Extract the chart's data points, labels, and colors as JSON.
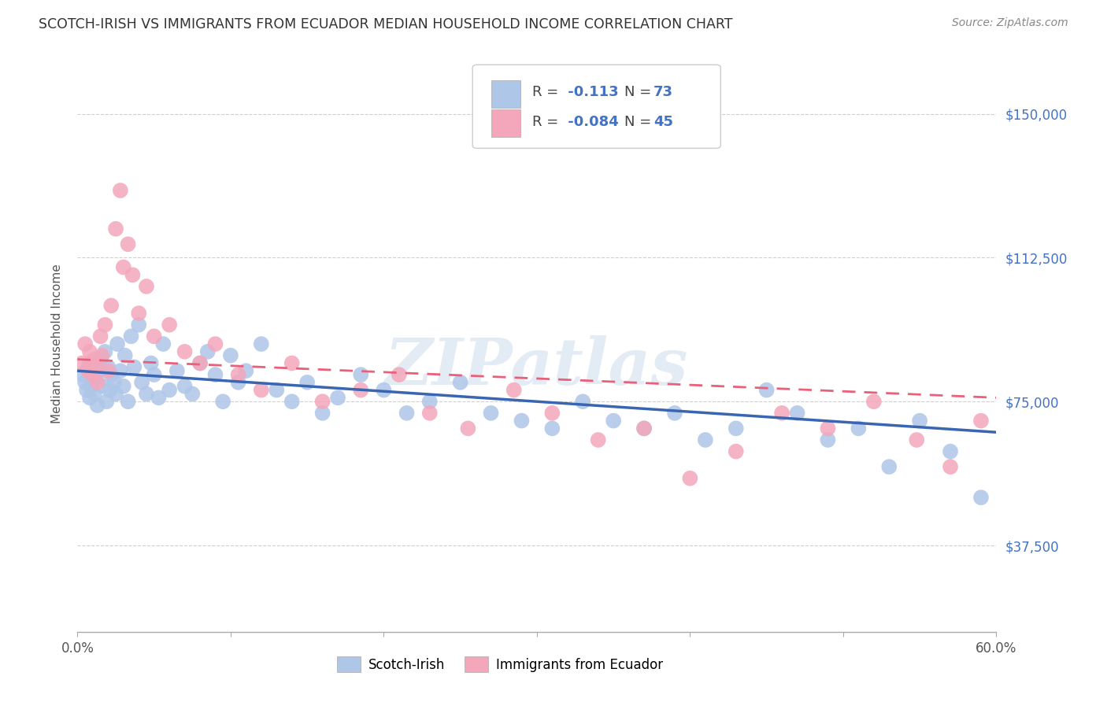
{
  "title": "SCOTCH-IRISH VS IMMIGRANTS FROM ECUADOR MEDIAN HOUSEHOLD INCOME CORRELATION CHART",
  "source": "Source: ZipAtlas.com",
  "ylabel": "Median Household Income",
  "ytick_positions": [
    37500,
    75000,
    112500,
    150000
  ],
  "ytick_labels": [
    "$37,500",
    "$75,000",
    "$112,500",
    "$150,000"
  ],
  "xlim": [
    0.0,
    0.6
  ],
  "ylim": [
    15000,
    165000
  ],
  "watermark": "ZIPatlas",
  "legend_r1": "-0.113",
  "legend_n1": "73",
  "legend_r2": "-0.084",
  "legend_n2": "45",
  "color_blue": "#aec6e8",
  "color_pink": "#f4a7bb",
  "line_blue": "#3a65b0",
  "line_pink": "#e8607a",
  "blue_line_y0": 83000,
  "blue_line_y1": 67000,
  "pink_line_y0": 86000,
  "pink_line_y1": 76000,
  "blue_x": [
    0.003,
    0.005,
    0.006,
    0.007,
    0.008,
    0.009,
    0.01,
    0.011,
    0.012,
    0.013,
    0.014,
    0.015,
    0.016,
    0.018,
    0.019,
    0.02,
    0.021,
    0.022,
    0.024,
    0.025,
    0.026,
    0.028,
    0.03,
    0.031,
    0.033,
    0.035,
    0.037,
    0.04,
    0.042,
    0.045,
    0.048,
    0.05,
    0.053,
    0.056,
    0.06,
    0.065,
    0.07,
    0.075,
    0.08,
    0.085,
    0.09,
    0.095,
    0.1,
    0.105,
    0.11,
    0.12,
    0.13,
    0.14,
    0.15,
    0.16,
    0.17,
    0.185,
    0.2,
    0.215,
    0.23,
    0.25,
    0.27,
    0.29,
    0.31,
    0.33,
    0.35,
    0.37,
    0.39,
    0.41,
    0.43,
    0.45,
    0.47,
    0.49,
    0.51,
    0.53,
    0.55,
    0.57,
    0.59
  ],
  "blue_y": [
    82000,
    80000,
    78000,
    84000,
    76000,
    79000,
    85000,
    77000,
    81000,
    74000,
    83000,
    86000,
    79000,
    88000,
    75000,
    84000,
    78000,
    82000,
    80000,
    77000,
    90000,
    83000,
    79000,
    87000,
    75000,
    92000,
    84000,
    95000,
    80000,
    77000,
    85000,
    82000,
    76000,
    90000,
    78000,
    83000,
    79000,
    77000,
    85000,
    88000,
    82000,
    75000,
    87000,
    80000,
    83000,
    90000,
    78000,
    75000,
    80000,
    72000,
    76000,
    82000,
    78000,
    72000,
    75000,
    80000,
    72000,
    70000,
    68000,
    75000,
    70000,
    68000,
    72000,
    65000,
    68000,
    78000,
    72000,
    65000,
    68000,
    58000,
    70000,
    62000,
    50000
  ],
  "pink_x": [
    0.003,
    0.005,
    0.007,
    0.008,
    0.01,
    0.011,
    0.012,
    0.013,
    0.015,
    0.016,
    0.018,
    0.02,
    0.022,
    0.025,
    0.028,
    0.03,
    0.033,
    0.036,
    0.04,
    0.045,
    0.05,
    0.06,
    0.07,
    0.08,
    0.09,
    0.105,
    0.12,
    0.14,
    0.16,
    0.185,
    0.21,
    0.23,
    0.255,
    0.285,
    0.31,
    0.34,
    0.37,
    0.4,
    0.43,
    0.46,
    0.49,
    0.52,
    0.548,
    0.57,
    0.59
  ],
  "pink_y": [
    85000,
    90000,
    83000,
    88000,
    82000,
    86000,
    84000,
    80000,
    92000,
    87000,
    95000,
    83000,
    100000,
    120000,
    130000,
    110000,
    116000,
    108000,
    98000,
    105000,
    92000,
    95000,
    88000,
    85000,
    90000,
    82000,
    78000,
    85000,
    75000,
    78000,
    82000,
    72000,
    68000,
    78000,
    72000,
    65000,
    68000,
    55000,
    62000,
    72000,
    68000,
    75000,
    65000,
    58000,
    70000
  ]
}
